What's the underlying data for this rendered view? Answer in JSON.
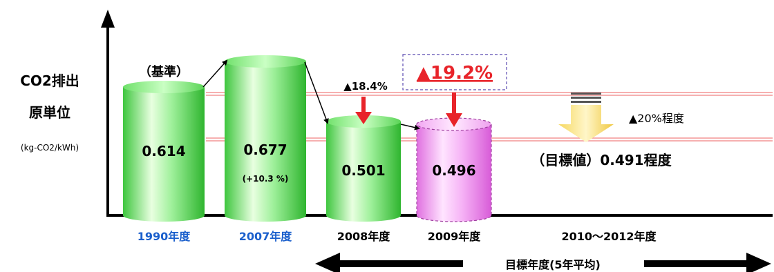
{
  "chart_data": {
    "type": "bar",
    "ylabel_line1": "CO2排出",
    "ylabel_line2": "原単位",
    "yunit": "(kg-CO2/kWh)",
    "categories": [
      "1990年度",
      "2007年度",
      "2008年度",
      "2009年度"
    ],
    "values": [
      0.614,
      0.677,
      0.501,
      0.496
    ],
    "value_labels": [
      "0.614",
      "0.677",
      "0.501",
      "0.496"
    ],
    "bar_notes": [
      "（基準）",
      "(+10.3 %)",
      "",
      ""
    ],
    "bar_colors": [
      "#4fd64f",
      "#4fd64f",
      "#4fd64f",
      "#ee88ee"
    ],
    "category_colors": [
      "#1a5fcc",
      "#1a5fcc",
      "#000000",
      "#000000"
    ],
    "reduction_2008": "▲18.4%",
    "reduction_2009": "▲19.2%",
    "target_category": "2010〜2012年度",
    "target_value": 0.491,
    "target_label": "（目標値）0.491程度",
    "target_reduction": "▲20%程度",
    "target_period_label": "目標年度(5年平均)",
    "accent_red": "#e8242a"
  }
}
